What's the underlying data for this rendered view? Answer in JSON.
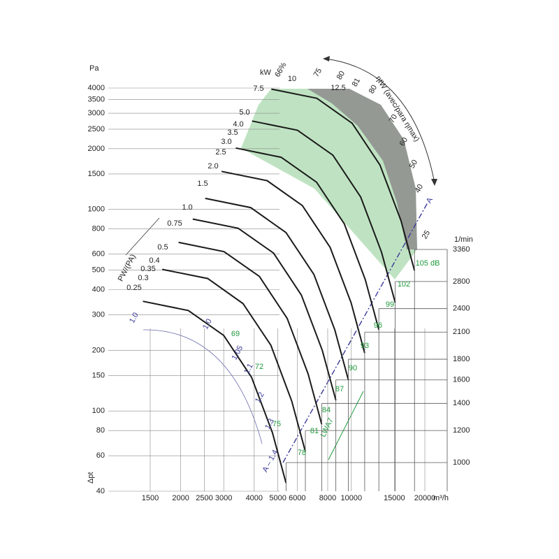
{
  "chart_data": {
    "type": "fan-curve",
    "log_scale": true,
    "y_label": "Pa",
    "y_axis_title": "Δpt",
    "x_unit": "m³/h",
    "y2_label": "1/min",
    "ylim": [
      40,
      4000
    ],
    "yticks": [
      40,
      60,
      80,
      100,
      150,
      200,
      300,
      400,
      500,
      600,
      800,
      1000,
      1500,
      2000,
      2500,
      3000,
      3500,
      4000
    ],
    "xlim": [
      1500,
      20000
    ],
    "xticks": [
      1500,
      2000,
      2500,
      3000,
      4000,
      5000,
      6000,
      8000,
      10000,
      15000,
      20000
    ],
    "y2lim": [
      1000,
      3360
    ],
    "y2ticks": [
      1000,
      1200,
      1400,
      1600,
      1800,
      2100,
      2400,
      2800,
      3360
    ],
    "curve_color": "#1a1a1a",
    "curves": [
      {
        "x": [
          1400,
          2150,
          3000,
          3900,
          4750,
          5400
        ],
        "y": [
          350,
          315,
          237,
          147,
          78,
          44
        ]
      },
      {
        "x": [
          1680,
          2580,
          3600,
          4680,
          5700,
          6480
        ],
        "y": [
          504,
          454,
          341,
          212,
          112,
          63
        ]
      },
      {
        "x": [
          1960,
          3010,
          4200,
          5460,
          6650,
          7560
        ],
        "y": [
          686,
          617,
          465,
          288,
          153,
          86
        ]
      },
      {
        "x": [
          2240,
          3440,
          4800,
          6240,
          7600,
          8640
        ],
        "y": [
          896,
          806,
          607,
          376,
          200,
          113
        ]
      },
      {
        "x": [
          2520,
          3870,
          5400,
          7020,
          8550,
          9720
        ],
        "y": [
          1134,
          1021,
          768,
          476,
          253,
          143
        ]
      },
      {
        "x": [
          2940,
          4515,
          6300,
          8190,
          9975,
          11340
        ],
        "y": [
          1544,
          1389,
          1045,
          648,
          344,
          194
        ]
      },
      {
        "x": [
          3360,
          5160,
          7200,
          9360,
          11400,
          12960
        ],
        "y": [
          2016,
          1814,
          1365,
          847,
          449,
          253
        ]
      },
      {
        "x": [
          3920,
          6020,
          8400,
          10920,
          13300,
          15120
        ],
        "y": [
          2744,
          2470,
          1858,
          1152,
          612,
          345
        ]
      },
      {
        "x": [
          4704,
          7224,
          10080,
          13104,
          15960,
          18144
        ],
        "y": [
          3951,
          3556,
          2676,
          1660,
          881,
          497
        ]
      }
    ],
    "power_unit": "kW",
    "power_labels": [
      "0.25",
      "0.3",
      "0.35",
      "0.4",
      "0.5",
      "0.75",
      "1.0",
      "1.5",
      "2.0",
      "2.5",
      "3.0",
      "3.5",
      "4.0",
      "5.0",
      "7.5",
      "10",
      "12.5"
    ],
    "efficiency_title": "ηtW (avec/para ηmax)",
    "efficiency_labels": [
      "66%",
      "75",
      "80",
      "81",
      "80",
      "70",
      "60",
      "50",
      "40",
      "25"
    ],
    "sound_title": "LWA7",
    "sound_labels": [
      "69",
      "72",
      "75",
      "78",
      "81",
      "84",
      "87",
      "90",
      "93",
      "96",
      "99",
      "102",
      "105 dB"
    ],
    "ratio_title": "PW/(PA)",
    "ratio_labels": [
      "1.0",
      "1.0",
      "1.05",
      "1.1",
      "1.2",
      "1.3"
    ],
    "line_labels": [
      "A",
      "A – 1.4"
    ]
  }
}
